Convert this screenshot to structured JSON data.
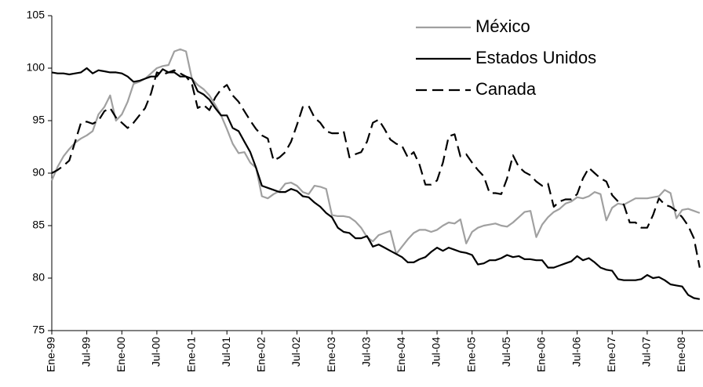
{
  "chart_data": {
    "type": "line",
    "categories": [
      "Ene-99",
      null,
      null,
      null,
      null,
      null,
      "Jul-99",
      null,
      null,
      null,
      null,
      null,
      "Ene-00",
      null,
      null,
      null,
      null,
      null,
      "Jul-00",
      null,
      null,
      null,
      null,
      null,
      "Ene-01",
      null,
      null,
      null,
      null,
      null,
      "Jul-01",
      null,
      null,
      null,
      null,
      null,
      "Ene-02",
      null,
      null,
      null,
      null,
      null,
      "Jul-02",
      null,
      null,
      null,
      null,
      null,
      "Ene-03",
      null,
      null,
      null,
      null,
      null,
      "Jul-03",
      null,
      null,
      null,
      null,
      null,
      "Ene-04",
      null,
      null,
      null,
      null,
      null,
      "Jul-04",
      null,
      null,
      null,
      null,
      null,
      "Ene-05",
      null,
      null,
      null,
      null,
      null,
      "Jul-05",
      null,
      null,
      null,
      null,
      null,
      "Ene-06",
      null,
      null,
      null,
      null,
      null,
      "Jul-06",
      null,
      null,
      null,
      null,
      null,
      "Ene-07",
      null,
      null,
      null,
      null,
      null,
      "Jul-07",
      null,
      null,
      null,
      null,
      null,
      "Ene-08",
      null,
      null,
      null
    ],
    "series": [
      {
        "name": "México",
        "color": "#a0a0a0",
        "dashed": false,
        "values": [
          89.3,
          90.6,
          91.6,
          92.3,
          92.9,
          93.3,
          93.6,
          94.0,
          95.6,
          96.3,
          97.4,
          95.0,
          95.6,
          96.8,
          98.5,
          98.7,
          99.0,
          99.5,
          100.0,
          100.2,
          100.3,
          101.6,
          101.8,
          101.6,
          99.0,
          98.4,
          98.0,
          97.4,
          96.5,
          95.5,
          94.2,
          92.8,
          91.9,
          92.0,
          91.0,
          90.5,
          87.8,
          87.6,
          88.0,
          88.3,
          89.0,
          89.1,
          88.8,
          88.2,
          88.0,
          88.8,
          88.7,
          88.5,
          86.0,
          85.9,
          85.9,
          85.8,
          85.4,
          84.8,
          83.9,
          83.5,
          84.1,
          84.3,
          84.5,
          82.3,
          83.0,
          83.7,
          84.3,
          84.6,
          84.6,
          84.4,
          84.6,
          85.0,
          85.3,
          85.2,
          85.6,
          83.3,
          84.4,
          84.8,
          85.0,
          85.1,
          85.2,
          85.0,
          84.9,
          85.3,
          85.8,
          86.3,
          86.4,
          83.9,
          85.1,
          85.8,
          86.3,
          86.6,
          87.1,
          87.3,
          87.7,
          87.6,
          87.8,
          88.2,
          88.0,
          85.5,
          86.7,
          87.1,
          87.0,
          87.3,
          87.6,
          87.6,
          87.6,
          87.7,
          87.8,
          88.4,
          88.1,
          85.7,
          86.5,
          86.6,
          86.4,
          86.2
        ]
      },
      {
        "name": "Estados Unidos",
        "color": "#000000",
        "dashed": false,
        "values": [
          99.6,
          99.5,
          99.5,
          99.4,
          99.5,
          99.6,
          100.0,
          99.5,
          99.8,
          99.7,
          99.6,
          99.6,
          99.5,
          99.2,
          98.7,
          98.8,
          99.0,
          99.2,
          99.2,
          99.9,
          99.6,
          99.6,
          99.2,
          99.2,
          99.0,
          97.8,
          97.5,
          97.0,
          96.2,
          95.5,
          95.5,
          94.3,
          94.0,
          93.0,
          92.0,
          90.5,
          88.8,
          88.6,
          88.4,
          88.2,
          88.2,
          88.5,
          88.3,
          87.8,
          87.7,
          87.2,
          86.8,
          86.2,
          85.8,
          84.8,
          84.4,
          84.3,
          83.8,
          83.8,
          84.0,
          83.0,
          83.2,
          82.9,
          82.6,
          82.3,
          82.0,
          81.5,
          81.5,
          81.8,
          82.0,
          82.5,
          82.9,
          82.6,
          82.9,
          82.7,
          82.5,
          82.4,
          82.2,
          81.3,
          81.4,
          81.7,
          81.7,
          81.9,
          82.2,
          82.0,
          82.1,
          81.8,
          81.8,
          81.7,
          81.7,
          81.0,
          81.0,
          81.2,
          81.4,
          81.6,
          82.1,
          81.7,
          81.9,
          81.5,
          81.0,
          80.8,
          80.7,
          79.9,
          79.8,
          79.8,
          79.8,
          79.9,
          80.3,
          80.0,
          80.1,
          79.8,
          79.4,
          79.3,
          79.2,
          78.4,
          78.1,
          78.0
        ]
      },
      {
        "name": "Canada",
        "color": "#000000",
        "dashed": true,
        "values": [
          90.0,
          90.3,
          90.7,
          91.2,
          93.0,
          94.8,
          94.9,
          94.7,
          95.0,
          95.9,
          96.2,
          95.3,
          94.8,
          94.3,
          94.8,
          95.5,
          96.2,
          97.6,
          99.6,
          99.4,
          99.6,
          99.8,
          99.5,
          99.2,
          98.5,
          96.2,
          96.5,
          96.0,
          97.2,
          98.0,
          98.4,
          97.4,
          96.8,
          95.9,
          95.0,
          94.2,
          93.6,
          93.3,
          91.2,
          91.5,
          92.0,
          93.0,
          94.6,
          96.3,
          96.4,
          95.3,
          94.8,
          94.0,
          93.8,
          93.8,
          94.0,
          91.5,
          91.8,
          92.0,
          93.0,
          94.8,
          95.1,
          94.2,
          93.2,
          92.8,
          92.6,
          91.5,
          92.0,
          90.8,
          88.9,
          88.9,
          89.3,
          91.0,
          93.5,
          93.7,
          91.6,
          91.8,
          91.0,
          90.3,
          89.7,
          88.1,
          88.1,
          88.0,
          89.5,
          91.7,
          90.6,
          90.1,
          89.8,
          89.2,
          88.8,
          89.0,
          86.8,
          87.3,
          87.5,
          87.5,
          88.0,
          89.5,
          90.5,
          90.0,
          89.5,
          89.2,
          87.9,
          87.3,
          87.0,
          85.3,
          85.3,
          84.8,
          84.8,
          86.0,
          87.6,
          87.0,
          86.8,
          86.4,
          85.8,
          85.0,
          83.8,
          81.0
        ]
      }
    ],
    "ylim": [
      75,
      105
    ],
    "yticks": [
      75,
      80,
      85,
      90,
      95,
      100,
      105
    ],
    "legend": "top-right",
    "grid": false
  }
}
